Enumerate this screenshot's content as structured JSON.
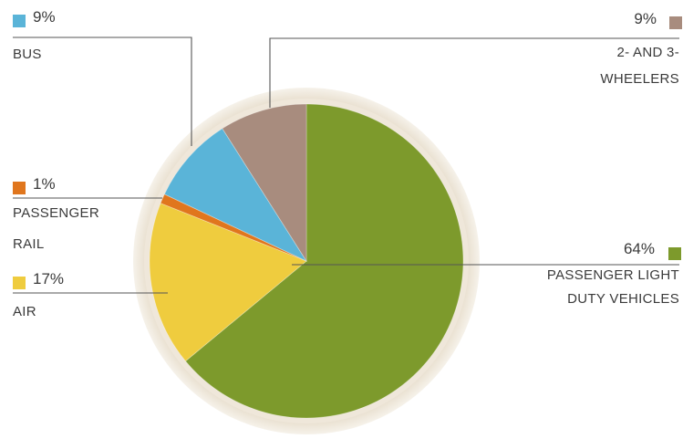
{
  "chart_data": {
    "type": "pie",
    "slices": [
      {
        "label_lines": [
          "PASSENGER LIGHT",
          "DUTY VEHICLES"
        ],
        "value": 64,
        "value_label": "64%",
        "color": "#7d9a2c"
      },
      {
        "label_lines": [
          "AIR"
        ],
        "value": 17,
        "value_label": "17%",
        "color": "#efcc3e"
      },
      {
        "label_lines": [
          "PASSENGER",
          "RAIL"
        ],
        "value": 1,
        "value_label": "1%",
        "color": "#e0761d"
      },
      {
        "label_lines": [
          "BUS"
        ],
        "value": 9,
        "value_label": "9%",
        "color": "#5ab4d8"
      },
      {
        "label_lines": [
          "2- AND 3-",
          "WHEELERS"
        ],
        "value": 9,
        "value_label": "9%",
        "color": "#a88c7e"
      }
    ],
    "legend_placement": "around pie, leader lines",
    "ring_color": "#e3d8c6",
    "line_color": "#555555"
  }
}
